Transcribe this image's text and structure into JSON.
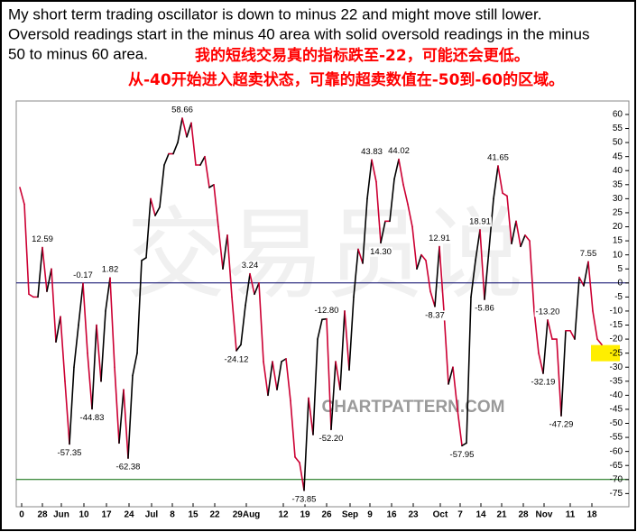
{
  "chart_data": {
    "type": "line",
    "title_lines": [
      "My short term trading oscillator is down to minus 22 and might move still lower.",
      "Oversold readings start in the minus 40 area with solid oversold readings in the minus",
      "50 to minus 60 area."
    ],
    "subtitle_lines": [
      "我的短线交易真的指标跌至-22，可能还会更低。",
      "从-40开始进入超卖状态，可靠的超卖数值在-50到-60的区域。"
    ],
    "watermarks": [
      "交易员说",
      "CHARTPATTERN.COM"
    ],
    "x": [
      0,
      1,
      2,
      3,
      4,
      5,
      6,
      7,
      8,
      9,
      10,
      11,
      12,
      13,
      14,
      15,
      16,
      17,
      18,
      19,
      20,
      21,
      22,
      23,
      24,
      25,
      26,
      27,
      28,
      29,
      30,
      31,
      32,
      33,
      34,
      35,
      36,
      37,
      38,
      39,
      40,
      41,
      42,
      43,
      44,
      45,
      46,
      47,
      48,
      49,
      50,
      51,
      52,
      53,
      54,
      55,
      56,
      57,
      58,
      59,
      60,
      61,
      62,
      63,
      64,
      65,
      66,
      67,
      68,
      69,
      70,
      71,
      72,
      73,
      74,
      75,
      76,
      77,
      78,
      79,
      80,
      81,
      82,
      83,
      84,
      85,
      86,
      87,
      88,
      89,
      90,
      91,
      92,
      93,
      94,
      95,
      96,
      97,
      98,
      99,
      100,
      101,
      102,
      103,
      104,
      105,
      106,
      107,
      108,
      109,
      110,
      111,
      112,
      113,
      114,
      115,
      116,
      117,
      118,
      119,
      120,
      121,
      122,
      123,
      124,
      125,
      126,
      127,
      128,
      129
    ],
    "series": [
      {
        "name": "Oscillator",
        "color": "#cc0033",
        "rise_color": "#000000",
        "values": [
          34,
          28,
          -4,
          -5,
          -5,
          12.59,
          -3,
          5,
          -21,
          -12,
          -35,
          -57.35,
          -30,
          -15,
          -0.17,
          -25,
          -44.83,
          -15,
          -35,
          -10,
          1.82,
          -30,
          -57,
          -38,
          -62.38,
          -33,
          -25,
          8,
          9,
          30,
          24,
          27,
          42,
          46,
          46,
          50,
          58.66,
          52,
          57,
          42,
          42,
          45,
          34,
          35,
          20,
          5,
          17,
          -5,
          -24.12,
          -22,
          -8,
          3.24,
          -4,
          0,
          -28,
          -40,
          -28,
          -38,
          -28,
          -27,
          -42,
          -62,
          -64,
          -73.85,
          -41,
          -54,
          -20,
          -13,
          -12.8,
          -52.2,
          -28,
          -38,
          -10,
          -31,
          -5,
          12,
          7,
          30,
          43.83,
          36,
          14.3,
          22,
          22,
          37,
          44.02,
          35,
          28,
          20,
          5,
          10,
          8,
          -3,
          -8.37,
          12.91,
          -10,
          -36,
          -30,
          -45,
          -57.95,
          -57,
          -5,
          8,
          18.91,
          -5.86,
          12,
          30,
          41.65,
          32,
          31,
          14,
          22,
          13,
          17,
          15,
          -10,
          -25,
          -32.19,
          -13.2,
          -20,
          -20,
          -47.29,
          -17,
          -17,
          -20,
          2,
          -1,
          7.55,
          -10,
          -20,
          -22
        ],
        "value_labels": [
          null,
          null,
          null,
          null,
          null,
          "12.59",
          null,
          null,
          null,
          null,
          null,
          "-57.35",
          null,
          null,
          "-0.17",
          null,
          "-44.83",
          null,
          null,
          null,
          "1.82",
          null,
          null,
          null,
          "-62.38",
          null,
          null,
          null,
          null,
          null,
          null,
          null,
          null,
          null,
          null,
          null,
          "58.66",
          null,
          null,
          null,
          null,
          null,
          null,
          null,
          null,
          null,
          null,
          null,
          "-24.12",
          null,
          null,
          "3.24",
          null,
          null,
          null,
          null,
          null,
          null,
          null,
          null,
          null,
          null,
          null,
          "-73.85",
          null,
          null,
          null,
          null,
          "-12.80",
          "-52.20",
          null,
          null,
          null,
          null,
          null,
          null,
          null,
          null,
          "43.83",
          null,
          "14.30",
          null,
          null,
          null,
          "44.02",
          null,
          null,
          null,
          null,
          null,
          null,
          null,
          "-8.37",
          "12.91",
          null,
          null,
          null,
          null,
          "-57.95",
          null,
          null,
          null,
          "18.91",
          "-5.86",
          null,
          null,
          "41.65",
          null,
          null,
          null,
          null,
          null,
          null,
          null,
          null,
          null,
          "-32.19",
          "-13.20",
          null,
          null,
          "-47.29",
          null,
          null,
          null,
          null,
          null,
          "7.55",
          null,
          null,
          null
        ]
      }
    ],
    "xlim": [
      0,
      131
    ],
    "xticks": [
      {
        "value": 0.4,
        "label": "0"
      },
      {
        "value": 5,
        "label": "28"
      },
      {
        "value": 9.2,
        "label": "Jun"
      },
      {
        "value": 14.2,
        "label": "10"
      },
      {
        "value": 19.2,
        "label": "17"
      },
      {
        "value": 24.2,
        "label": "24"
      },
      {
        "value": 29.2,
        "label": "Jul"
      },
      {
        "value": 33.8,
        "label": "8"
      },
      {
        "value": 38.4,
        "label": "15"
      },
      {
        "value": 43.2,
        "label": "22"
      },
      {
        "value": 50.2,
        "label": "29Aug"
      },
      {
        "value": 58.4,
        "label": "12"
      },
      {
        "value": 63.2,
        "label": "19"
      },
      {
        "value": 68,
        "label": "26"
      },
      {
        "value": 73.2,
        "label": "Sep"
      },
      {
        "value": 77.6,
        "label": "9"
      },
      {
        "value": 82.4,
        "label": "16"
      },
      {
        "value": 87.2,
        "label": "23"
      },
      {
        "value": 93.2,
        "label": "Oct"
      },
      {
        "value": 97.6,
        "label": "7"
      },
      {
        "value": 102.2,
        "label": "14"
      },
      {
        "value": 106.8,
        "label": "21"
      },
      {
        "value": 111.6,
        "label": "28"
      },
      {
        "value": 116.2,
        "label": "Nov"
      },
      {
        "value": 122,
        "label": "11"
      },
      {
        "value": 126.8,
        "label": "18"
      }
    ],
    "ylim": [
      -79.7,
      64.8
    ],
    "yticks": [
      60,
      55,
      50,
      45,
      40,
      35,
      30,
      25,
      20,
      15,
      10,
      5,
      0,
      -5,
      -10,
      -15,
      -20,
      -25,
      -30,
      -35,
      -40,
      -45,
      -50,
      -55,
      -60,
      -65,
      -70,
      -75
    ],
    "ref_lines": [
      {
        "value": 0,
        "color": "#000066"
      },
      {
        "value": -70,
        "color": "#006600"
      }
    ],
    "highlight": {
      "value": -25,
      "color": "#ffee00"
    }
  }
}
